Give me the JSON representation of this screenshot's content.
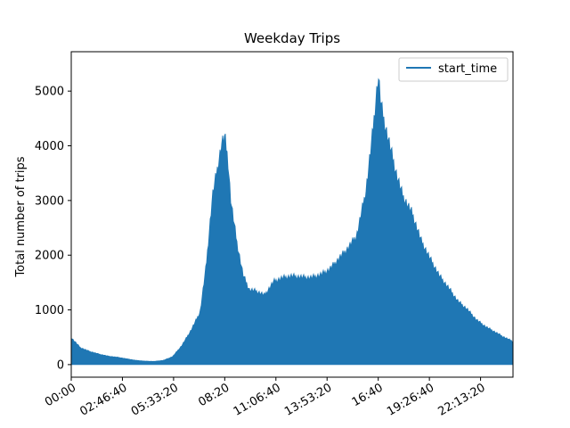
{
  "chart_data": {
    "type": "area",
    "title": "Weekday Trips",
    "xlabel": "",
    "ylabel": "Total number of trips",
    "xlim": [
      "00:00",
      "23:59"
    ],
    "ylim": [
      -230,
      5720
    ],
    "x_tick_labels": [
      "00:00",
      "02:46:40",
      "05:33:20",
      "08:20",
      "11:06:40",
      "13:53:20",
      "16:40",
      "19:26:40",
      "22:13:20"
    ],
    "y_tick_labels": [
      "0",
      "1000",
      "2000",
      "3000",
      "4000",
      "5000"
    ],
    "y_ticks": [
      0,
      1000,
      2000,
      3000,
      4000,
      5000
    ],
    "x_ticks_seconds": [
      0,
      10000,
      20000,
      30000,
      40000,
      50000,
      60000,
      70000,
      80000
    ],
    "x_max_seconds": 86340,
    "legend": {
      "entries": [
        "start_time"
      ],
      "location": "upper right"
    },
    "grid": false,
    "color": "#1f77b4",
    "series": [
      {
        "name": "start_time",
        "x": [
          "00:00",
          "00:30",
          "01:00",
          "01:30",
          "02:00",
          "02:30",
          "03:00",
          "03:30",
          "04:00",
          "04:30",
          "05:00",
          "05:30",
          "06:00",
          "06:30",
          "07:00",
          "07:20",
          "07:40",
          "08:00",
          "08:10",
          "08:20",
          "08:30",
          "08:40",
          "09:00",
          "09:20",
          "09:40",
          "10:00",
          "10:30",
          "11:00",
          "11:30",
          "12:00",
          "12:30",
          "13:00",
          "13:30",
          "14:00",
          "14:30",
          "15:00",
          "15:30",
          "16:00",
          "16:20",
          "16:40",
          "16:50",
          "17:00",
          "17:10",
          "17:20",
          "17:40",
          "18:00",
          "18:30",
          "19:00",
          "19:30",
          "20:00",
          "20:30",
          "21:00",
          "21:30",
          "22:00",
          "22:30",
          "23:00",
          "23:30",
          "23:59"
        ],
        "y": [
          510,
          320,
          250,
          200,
          160,
          140,
          110,
          80,
          65,
          60,
          80,
          150,
          360,
          650,
          1000,
          1900,
          3200,
          3850,
          4200,
          4330,
          3900,
          3100,
          2300,
          1700,
          1420,
          1400,
          1320,
          1580,
          1650,
          1680,
          1660,
          1650,
          1700,
          1800,
          2000,
          2200,
          2450,
          3300,
          4300,
          5480,
          4900,
          4600,
          4350,
          4100,
          3600,
          3200,
          2880,
          2350,
          2000,
          1680,
          1450,
          1200,
          1050,
          850,
          720,
          620,
          520,
          440
        ]
      }
    ]
  }
}
